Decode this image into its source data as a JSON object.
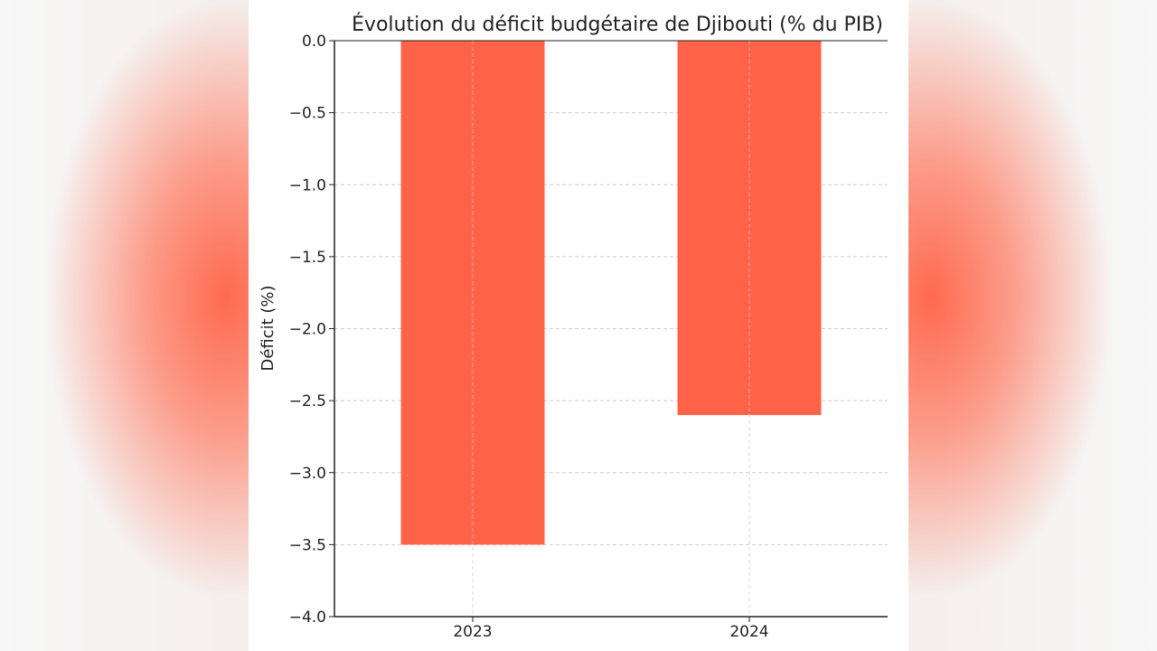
{
  "chart_data": {
    "type": "bar",
    "title": "Évolution du déficit budgétaire de Djibouti (% du PIB)",
    "xlabel": "",
    "ylabel": "Déficit (%)",
    "categories": [
      "2023",
      "2024"
    ],
    "values": [
      -3.5,
      -2.6
    ],
    "ylim": [
      -4.0,
      0.0
    ],
    "yticks": [
      0.0,
      -0.5,
      -1.0,
      -1.5,
      -2.0,
      -2.5,
      -3.0,
      -3.5,
      -4.0
    ],
    "ytick_labels": [
      "0.0",
      "−0.5",
      "−1.0",
      "−1.5",
      "−2.0",
      "−2.5",
      "−3.0",
      "−3.5",
      "−4.0"
    ],
    "grid": true,
    "bar_color": "#ff6347",
    "grid_color": "#cccccc"
  }
}
